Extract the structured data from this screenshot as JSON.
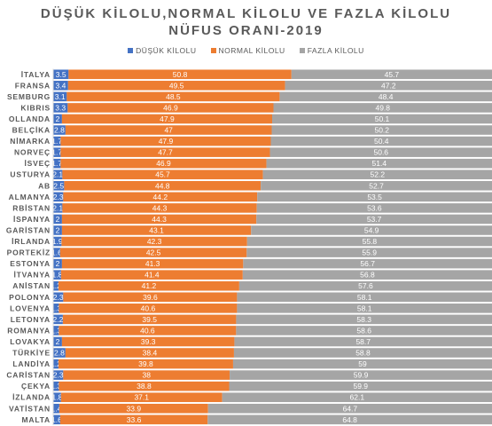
{
  "chart_data": {
    "type": "bar",
    "stacked": true,
    "percent": true,
    "orientation": "horizontal",
    "title_line1": "DÜŞÜK KİLOLU,NORMAL KİLOLU VE FAZLA KİLOLU",
    "title_line2": "NÜFUS ORANI-2019",
    "legend_position": "top",
    "categories": [
      "İTALYA",
      "FRANSA",
      "LÜKSEMBURG",
      "KIBRIS",
      "HOLLANDA",
      "BELÇİKA",
      "DANİMARKA",
      "NORVEÇ",
      "İSVEÇ",
      "AVUSTURYA",
      "AB",
      "ALMANYA",
      "SIRBİSTAN",
      "İSPANYA",
      "BULGARİSTAN",
      "İRLANDA",
      "PORTEKİZ",
      "ESTONYA",
      "LİTVANYA",
      "YUNANİSTAN",
      "POLONYA",
      "SLOVENYA",
      "LETONYA",
      "ROMANYA",
      "SLOVAKYA",
      "TÜRKİYE",
      "FİNLANDİYA",
      "MACARİSTAN",
      "ÇEKYA",
      "İZLANDA",
      "HIRVATİSTAN",
      "MALTA"
    ],
    "category_labels": [
      "İTALYA",
      "FRANSA",
      "SEMBURG",
      "KIBRIS",
      "OLLANDA",
      "BELÇİKA",
      "NİMARKA",
      "NORVEÇ",
      "İSVEÇ",
      "USTURYA",
      "AB",
      "ALMANYA",
      "RBİSTAN",
      "İSPANYA",
      "GARİSTAN",
      "İRLANDA",
      "PORTEKİZ",
      "ESTONYA",
      "İTVANYA",
      "ANİSTAN",
      "POLONYA",
      "LOVENYA",
      "LETONYA",
      "ROMANYA",
      "LOVAKYA",
      "TÜRKİYE",
      "LANDİYA",
      "CARİSTAN",
      "ÇEKYA",
      "İZLANDA",
      "VATİSTAN",
      "MALTA"
    ],
    "series": [
      {
        "name": "DÜŞÜK KİLOLU",
        "color": "#4472C4",
        "values": [
          3.5,
          3.4,
          3.1,
          3.3,
          2,
          2.8,
          1.7,
          1.7,
          1.7,
          2.1,
          2.5,
          2.3,
          2.1,
          2,
          2,
          1.9,
          1.6,
          2,
          1.8,
          1.2,
          2.3,
          1.3,
          2.2,
          1.3,
          2,
          2.8,
          1.2,
          2.3,
          1.3,
          1.8,
          1.4,
          1.6
        ],
        "labels": [
          "3.5",
          "3.4",
          "3.1",
          "3.3",
          "2",
          "2.8",
          "1.7",
          "1.7",
          "1.7",
          "2.1",
          "2.5",
          "2.3",
          "2.1",
          "2",
          "2",
          "1.9",
          "1.6",
          "2",
          "1.8",
          "1.2",
          "2.3",
          "1.3",
          "2.2",
          "1.3",
          "2",
          "2.8",
          "1.2",
          "2.3",
          "1.3",
          "1.8",
          "1.4",
          "1.6"
        ]
      },
      {
        "name": "NORMAL KİLOLU",
        "color": "#ED7D31",
        "values": [
          50.8,
          49.5,
          48.5,
          46.9,
          47.9,
          47,
          47.9,
          47.7,
          46.9,
          45.7,
          44.8,
          44.2,
          44.3,
          44.3,
          43.1,
          42.3,
          42.5,
          41.3,
          41.4,
          41.2,
          39.6,
          40.6,
          39.5,
          40.6,
          39.3,
          38.4,
          39.8,
          38,
          38.8,
          37.1,
          33.9,
          33.6
        ],
        "labels": [
          "50.8",
          "49.5",
          "48.5",
          "46.9",
          "47.9",
          "47",
          "47.9",
          "47.7",
          "46.9",
          "45.7",
          "44.8",
          "44.2",
          "44.3",
          "44.3",
          "43.1",
          "42.3",
          "42.5",
          "41.3",
          "41.4",
          "41.2",
          "39.6",
          "40.6",
          "39.5",
          "40.6",
          "39.3",
          "38.4",
          "39.8",
          "38",
          "38.8",
          "37.1",
          "33.9",
          "33.6"
        ]
      },
      {
        "name": "FAZLA KİLOLU",
        "color": "#A5A5A5",
        "values": [
          45.7,
          47.2,
          48.4,
          49.8,
          50.1,
          50.2,
          50.4,
          50.6,
          51.4,
          52.2,
          52.7,
          53.5,
          53.6,
          53.7,
          54.9,
          55.8,
          55.9,
          56.7,
          56.8,
          57.6,
          58.1,
          58.1,
          58.3,
          58.6,
          58.7,
          58.8,
          59,
          59.9,
          59.9,
          62.1,
          64.7,
          64.8
        ],
        "labels": [
          "45.7",
          "47.2",
          "48.4",
          "49.8",
          "50.1",
          "50.2",
          "50.4",
          "50.6",
          "51.4",
          "52.2",
          "52.7",
          "53.5",
          "53.6",
          "53.7",
          "54.9",
          "55.8",
          "55.9",
          "56.7",
          "56.8",
          "57.6",
          "58.1",
          "58.1",
          "58.3",
          "58.6",
          "58.7",
          "58.8",
          "59",
          "59.9",
          "59.9",
          "62.1",
          "64.7",
          "64.8"
        ]
      }
    ]
  }
}
